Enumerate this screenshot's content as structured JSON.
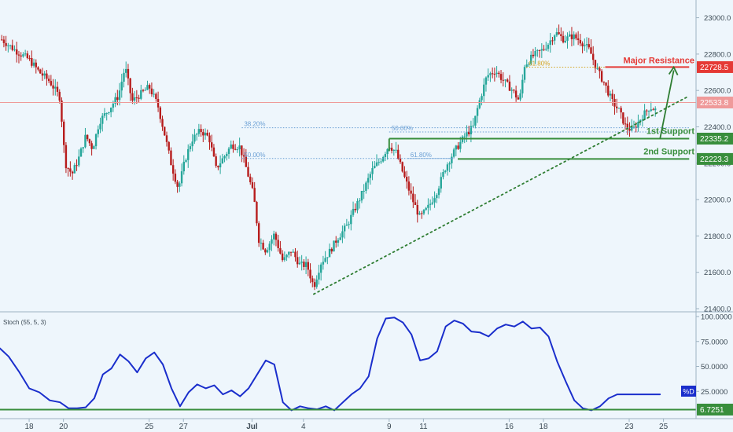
{
  "chart_data": [
    {
      "type": "candlestick",
      "title": "",
      "ylim": [
        21400,
        23050
      ],
      "y_ticks": [
        "23000.0",
        "22800.0",
        "22600.0",
        "22400.0",
        "22200.0",
        "22000.0",
        "21800.0",
        "21600.0",
        "21400.0"
      ],
      "y_tick_values": [
        23000,
        22800,
        22600,
        22400,
        22200,
        22000,
        21800,
        21600,
        21400
      ],
      "x_ticks": [
        "18",
        "20",
        "25",
        "27",
        "Jul",
        "4",
        "9",
        "11",
        "16",
        "18",
        "23",
        "25"
      ],
      "x_tick_days": [
        0,
        2,
        7,
        9,
        13,
        16,
        21,
        23,
        28,
        30,
        35,
        37
      ],
      "x_range_days": [
        -1.7,
        38.9
      ],
      "grid": false,
      "price_path": [
        [
          -1.6,
          22880
        ],
        [
          -0.8,
          22820
        ],
        [
          0.0,
          22770
        ],
        [
          0.6,
          22700
        ],
        [
          1.2,
          22650
        ],
        [
          1.8,
          22560
        ],
        [
          2.1,
          22200
        ],
        [
          2.5,
          22140
        ],
        [
          2.9,
          22230
        ],
        [
          3.3,
          22350
        ],
        [
          3.7,
          22280
        ],
        [
          4.1,
          22430
        ],
        [
          4.6,
          22490
        ],
        [
          5.2,
          22570
        ],
        [
          5.6,
          22730
        ],
        [
          6.0,
          22540
        ],
        [
          6.5,
          22580
        ],
        [
          7.0,
          22620
        ],
        [
          7.5,
          22520
        ],
        [
          7.9,
          22360
        ],
        [
          8.3,
          22190
        ],
        [
          8.7,
          22060
        ],
        [
          9.1,
          22220
        ],
        [
          9.5,
          22330
        ],
        [
          10.0,
          22380
        ],
        [
          10.5,
          22340
        ],
        [
          10.9,
          22170
        ],
        [
          11.4,
          22240
        ],
        [
          11.8,
          22300
        ],
        [
          12.3,
          22290
        ],
        [
          12.7,
          22160
        ],
        [
          13.1,
          22020
        ],
        [
          13.4,
          21780
        ],
        [
          13.8,
          21720
        ],
        [
          14.3,
          21810
        ],
        [
          14.8,
          21660
        ],
        [
          15.3,
          21720
        ],
        [
          15.8,
          21640
        ],
        [
          16.2,
          21640
        ],
        [
          16.6,
          21520
        ],
        [
          17.0,
          21650
        ],
        [
          17.5,
          21710
        ],
        [
          18.0,
          21790
        ],
        [
          18.5,
          21850
        ],
        [
          19.0,
          21950
        ],
        [
          19.5,
          22050
        ],
        [
          20.0,
          22160
        ],
        [
          20.5,
          22220
        ],
        [
          21.0,
          22300
        ],
        [
          21.4,
          22260
        ],
        [
          21.9,
          22120
        ],
        [
          22.4,
          21990
        ],
        [
          22.8,
          21900
        ],
        [
          23.3,
          21960
        ],
        [
          23.8,
          22050
        ],
        [
          24.3,
          22180
        ],
        [
          24.7,
          22250
        ],
        [
          25.2,
          22320
        ],
        [
          25.5,
          22360
        ],
        [
          25.9,
          22400
        ],
        [
          26.2,
          22520
        ],
        [
          26.7,
          22680
        ],
        [
          27.2,
          22710
        ],
        [
          27.7,
          22650
        ],
        [
          28.2,
          22600
        ],
        [
          28.6,
          22540
        ],
        [
          28.9,
          22740
        ],
        [
          29.4,
          22790
        ],
        [
          29.9,
          22820
        ],
        [
          30.3,
          22860
        ],
        [
          30.7,
          22920
        ],
        [
          31.2,
          22880
        ],
        [
          31.7,
          22900
        ],
        [
          32.2,
          22870
        ],
        [
          32.7,
          22820
        ],
        [
          33.1,
          22720
        ],
        [
          33.6,
          22630
        ],
        [
          34.0,
          22540
        ],
        [
          34.4,
          22490
        ],
        [
          34.8,
          22400
        ],
        [
          35.2,
          22380
        ],
        [
          35.7,
          22450
        ],
        [
          36.2,
          22510
        ],
        [
          36.6,
          22490
        ]
      ],
      "levels": [
        {
          "name": "Major Resistance",
          "value": 22728.5,
          "label": "22728.5",
          "color": "#e53935"
        },
        {
          "name": "1st Support",
          "value": 22335.2,
          "label": "22335.2",
          "color": "#388e3c"
        },
        {
          "name": "2nd Support",
          "value": 22223.3,
          "label": "22223.3",
          "color": "#388e3c"
        }
      ],
      "current_price": {
        "value": 22533.8,
        "label": "22533.8",
        "color": "#ef9a9a"
      },
      "fib_levels": [
        {
          "label": "38.20%",
          "value": 22395,
          "from_day": 12.4,
          "to_day": 38.5
        },
        {
          "label": "50.00%",
          "value": 22372,
          "from_day": 21.0,
          "to_day": 38.5
        },
        {
          "label": "50.00%",
          "value": 22226,
          "from_day": 12.4,
          "to_day": 24.8
        },
        {
          "label": "61.80%",
          "value": 22226,
          "from_day": 22.1,
          "to_day": 24.8
        },
        {
          "label": "61.80%",
          "value": 22728,
          "from_day": 29.0,
          "to_day": 33.6
        }
      ],
      "trendline": {
        "from": [
          16.6,
          21480
        ],
        "to": [
          38.5,
          22570
        ]
      },
      "projection_arrow": {
        "from": [
          36.8,
          22335
        ],
        "to": [
          37.6,
          22728
        ]
      }
    },
    {
      "type": "line",
      "indicator_label": "Stoch (55, 5, 3)",
      "ylim": [
        0,
        100
      ],
      "y_ticks": [
        "100.0000",
        "75.0000",
        "50.0000",
        "25.0000"
      ],
      "y_tick_values": [
        100,
        75,
        50,
        25
      ],
      "series": [
        {
          "name": "%D",
          "color": "#1a2ecc",
          "x": [
            -1.7,
            -1.2,
            -0.6,
            0.0,
            0.6,
            1.2,
            1.8,
            2.3,
            2.8,
            3.3,
            3.8,
            4.3,
            4.8,
            5.3,
            5.8,
            6.3,
            6.8,
            7.3,
            7.8,
            8.3,
            8.8,
            9.3,
            9.8,
            10.3,
            10.8,
            11.3,
            11.8,
            12.3,
            12.8,
            13.3,
            13.8,
            14.3,
            14.8,
            15.3,
            15.8,
            16.3,
            16.8,
            17.3,
            17.8,
            18.3,
            18.8,
            19.3,
            19.8,
            20.3,
            20.8,
            21.3,
            21.8,
            22.3,
            22.8,
            23.3,
            23.8,
            24.3,
            24.8,
            25.3,
            25.8,
            26.3,
            26.8,
            27.3,
            27.8,
            28.3,
            28.8,
            29.3,
            29.8,
            30.3,
            30.8,
            31.3,
            31.8,
            32.3,
            32.8,
            33.3,
            33.8,
            34.3,
            34.8,
            35.3,
            35.8,
            36.3,
            36.8
          ],
          "values": [
            68,
            60,
            45,
            28,
            24,
            16,
            14,
            8,
            8,
            9,
            18,
            42,
            48,
            62,
            55,
            44,
            58,
            64,
            52,
            28,
            10,
            24,
            32,
            28,
            31,
            22,
            26,
            20,
            28,
            42,
            56,
            52,
            14,
            6,
            10,
            8,
            7,
            10,
            6,
            14,
            22,
            28,
            40,
            78,
            98,
            99,
            94,
            82,
            56,
            58,
            65,
            90,
            96,
            93,
            85,
            84,
            80,
            88,
            92,
            90,
            95,
            88,
            89,
            80,
            55,
            35,
            16,
            8,
            6,
            10,
            18,
            22,
            22,
            22,
            22,
            22,
            22
          ]
        }
      ],
      "series_label": "%D",
      "baseline": {
        "value": 6.7251,
        "label": "6.7251",
        "color": "#388e3c"
      }
    }
  ]
}
